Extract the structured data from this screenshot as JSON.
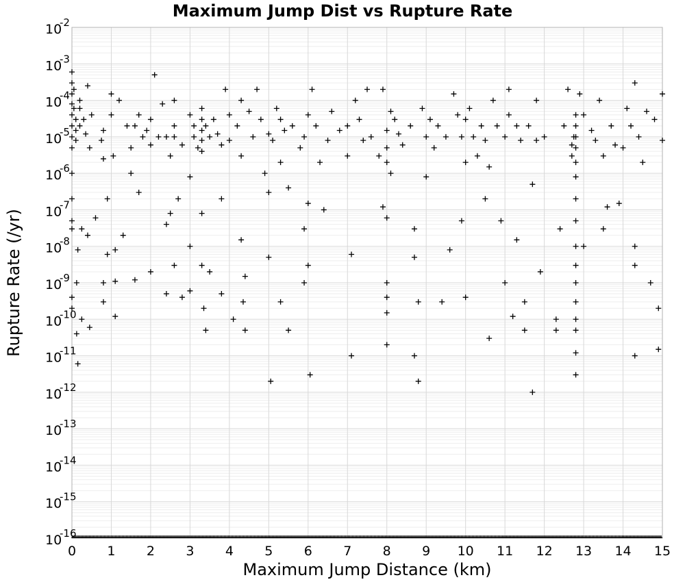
{
  "chart_data": {
    "type": "scatter",
    "title": "Maximum Jump Dist vs Rupture Rate",
    "xlabel": "Maximum Jump Distance (km)",
    "ylabel": "Rupture Rate (/yr)",
    "xlim": [
      0,
      15
    ],
    "ylim": [
      1e-16,
      0.01
    ],
    "y_scale": "log",
    "grid": true,
    "x_ticks": [
      "0",
      "1",
      "2",
      "3",
      "4",
      "5",
      "6",
      "7",
      "8",
      "9",
      "10",
      "11",
      "12",
      "13",
      "14",
      "15"
    ],
    "y_ticks": [
      {
        "base": "10",
        "exp": "-2"
      },
      {
        "base": "10",
        "exp": "-3"
      },
      {
        "base": "10",
        "exp": "-4"
      },
      {
        "base": "10",
        "exp": "-5"
      },
      {
        "base": "10",
        "exp": "-6"
      },
      {
        "base": "10",
        "exp": "-7"
      },
      {
        "base": "10",
        "exp": "-8"
      },
      {
        "base": "10",
        "exp": "-9"
      },
      {
        "base": "10",
        "exp": "-10"
      },
      {
        "base": "10",
        "exp": "-11"
      },
      {
        "base": "10",
        "exp": "-12"
      },
      {
        "base": "10",
        "exp": "-13"
      },
      {
        "base": "10",
        "exp": "-14"
      },
      {
        "base": "10",
        "exp": "-15"
      },
      {
        "base": "10",
        "exp": "-16"
      }
    ],
    "marker": "+",
    "marker_color": "#000000",
    "points": [
      [
        0.0,
        0.0006
      ],
      [
        0.0,
        0.0003
      ],
      [
        0.0,
        0.00015
      ],
      [
        0.0,
        8e-05
      ],
      [
        0.0,
        4e-05
      ],
      [
        0.0,
        2e-05
      ],
      [
        0.0,
        1e-05
      ],
      [
        0.0,
        5e-06
      ],
      [
        0.0,
        1e-06
      ],
      [
        0.0,
        2e-07
      ],
      [
        0.0,
        5e-08
      ],
      [
        0.0,
        3e-08
      ],
      [
        0.0,
        4e-10
      ],
      [
        0.0,
        2e-10
      ],
      [
        0.05,
        0.0002
      ],
      [
        0.05,
        6e-05
      ],
      [
        0.1,
        3e-05
      ],
      [
        0.1,
        1.5e-05
      ],
      [
        0.1,
        8e-06
      ],
      [
        0.12,
        1e-09
      ],
      [
        0.12,
        4e-11
      ],
      [
        0.15,
        6e-12
      ],
      [
        0.15,
        8e-09
      ],
      [
        0.2,
        2e-05
      ],
      [
        0.2,
        6e-05
      ],
      [
        0.2,
        0.0001
      ],
      [
        0.25,
        3e-08
      ],
      [
        0.25,
        1e-10
      ],
      [
        0.3,
        3e-05
      ],
      [
        0.35,
        1.2e-05
      ],
      [
        0.4,
        0.00025
      ],
      [
        0.4,
        2e-08
      ],
      [
        0.45,
        5e-06
      ],
      [
        0.45,
        6e-11
      ],
      [
        0.5,
        4e-05
      ],
      [
        0.6,
        6e-08
      ],
      [
        0.75,
        8e-06
      ],
      [
        0.8,
        1.5e-05
      ],
      [
        0.8,
        2.5e-06
      ],
      [
        0.8,
        1e-09
      ],
      [
        0.8,
        3e-10
      ],
      [
        0.9,
        2e-07
      ],
      [
        0.9,
        6e-09
      ],
      [
        1.0,
        4e-05
      ],
      [
        1.0,
        0.00015
      ],
      [
        1.05,
        3e-06
      ],
      [
        1.1,
        8e-09
      ],
      [
        1.1,
        1.1e-09
      ],
      [
        1.1,
        1.2e-10
      ],
      [
        1.2,
        0.0001
      ],
      [
        1.3,
        2e-08
      ],
      [
        1.4,
        2e-05
      ],
      [
        1.5,
        5e-06
      ],
      [
        1.5,
        1e-06
      ],
      [
        1.6,
        2e-05
      ],
      [
        1.6,
        1.2e-09
      ],
      [
        1.7,
        4e-05
      ],
      [
        1.7,
        3e-07
      ],
      [
        1.8,
        1e-05
      ],
      [
        1.9,
        1.5e-05
      ],
      [
        2.0,
        3e-05
      ],
      [
        2.0,
        6e-06
      ],
      [
        2.0,
        2e-09
      ],
      [
        2.1,
        0.0005
      ],
      [
        2.2,
        1e-05
      ],
      [
        2.3,
        8e-05
      ],
      [
        2.4,
        1e-05
      ],
      [
        2.4,
        4e-08
      ],
      [
        2.4,
        5e-10
      ],
      [
        2.5,
        3e-06
      ],
      [
        2.5,
        8e-08
      ],
      [
        2.6,
        2e-05
      ],
      [
        2.6,
        1e-05
      ],
      [
        2.6,
        0.0001
      ],
      [
        2.6,
        3e-09
      ],
      [
        2.7,
        2e-07
      ],
      [
        2.8,
        6e-06
      ],
      [
        2.8,
        4e-10
      ],
      [
        3.0,
        4e-05
      ],
      [
        3.0,
        8e-07
      ],
      [
        3.0,
        1e-08
      ],
      [
        3.0,
        6e-10
      ],
      [
        3.1,
        2e-05
      ],
      [
        3.1,
        1e-05
      ],
      [
        3.2,
        5e-06
      ],
      [
        3.3,
        6e-05
      ],
      [
        3.3,
        3e-05
      ],
      [
        3.3,
        1.5e-05
      ],
      [
        3.3,
        8e-06
      ],
      [
        3.3,
        4e-06
      ],
      [
        3.3,
        8e-08
      ],
      [
        3.3,
        3e-09
      ],
      [
        3.35,
        2e-10
      ],
      [
        3.4,
        2e-05
      ],
      [
        3.4,
        5e-11
      ],
      [
        3.5,
        1e-05
      ],
      [
        3.5,
        2e-09
      ],
      [
        3.6,
        3e-05
      ],
      [
        3.7,
        1.2e-05
      ],
      [
        3.8,
        6e-06
      ],
      [
        3.8,
        2e-07
      ],
      [
        3.8,
        5e-10
      ],
      [
        3.9,
        0.0002
      ],
      [
        4.0,
        4e-05
      ],
      [
        4.0,
        8e-06
      ],
      [
        4.1,
        1e-10
      ],
      [
        4.2,
        2e-05
      ],
      [
        4.3,
        0.0001
      ],
      [
        4.3,
        3e-06
      ],
      [
        4.3,
        1.5e-08
      ],
      [
        4.35,
        3e-10
      ],
      [
        4.4,
        1.5e-09
      ],
      [
        4.4,
        5e-11
      ],
      [
        4.5,
        5e-05
      ],
      [
        4.6,
        1e-05
      ],
      [
        4.7,
        0.0002
      ],
      [
        4.8,
        3e-05
      ],
      [
        4.9,
        1e-06
      ],
      [
        5.0,
        1.2e-05
      ],
      [
        5.0,
        3e-07
      ],
      [
        5.0,
        5e-09
      ],
      [
        5.05,
        2e-12
      ],
      [
        5.1,
        8e-06
      ],
      [
        5.2,
        6e-05
      ],
      [
        5.3,
        3e-05
      ],
      [
        5.3,
        2e-06
      ],
      [
        5.3,
        3e-10
      ],
      [
        5.4,
        1.5e-05
      ],
      [
        5.5,
        4e-07
      ],
      [
        5.5,
        5e-11
      ],
      [
        5.6,
        2e-05
      ],
      [
        5.8,
        5e-06
      ],
      [
        5.9,
        1e-05
      ],
      [
        5.9,
        3e-08
      ],
      [
        5.9,
        1e-09
      ],
      [
        6.0,
        4e-05
      ],
      [
        6.0,
        1.5e-07
      ],
      [
        6.0,
        3e-09
      ],
      [
        6.05,
        3e-12
      ],
      [
        6.1,
        0.0002
      ],
      [
        6.2,
        2e-05
      ],
      [
        6.3,
        2e-06
      ],
      [
        6.4,
        1e-07
      ],
      [
        6.5,
        8e-06
      ],
      [
        6.6,
        5e-05
      ],
      [
        6.8,
        1.5e-05
      ],
      [
        7.0,
        2e-05
      ],
      [
        7.0,
        3e-06
      ],
      [
        7.1,
        6e-09
      ],
      [
        7.1,
        1e-11
      ],
      [
        7.2,
        0.0001
      ],
      [
        7.3,
        3e-05
      ],
      [
        7.4,
        8e-06
      ],
      [
        7.5,
        0.0002
      ],
      [
        7.6,
        1e-05
      ],
      [
        7.8,
        3e-06
      ],
      [
        7.9,
        0.0002
      ],
      [
        7.9,
        1.2e-07
      ],
      [
        8.0,
        1.5e-05
      ],
      [
        8.0,
        5e-06
      ],
      [
        8.0,
        2e-06
      ],
      [
        8.0,
        6e-08
      ],
      [
        8.0,
        1e-09
      ],
      [
        8.0,
        4e-10
      ],
      [
        8.0,
        1.5e-10
      ],
      [
        8.0,
        2e-11
      ],
      [
        8.1,
        5e-05
      ],
      [
        8.1,
        1e-06
      ],
      [
        8.2,
        3e-05
      ],
      [
        8.3,
        1.2e-05
      ],
      [
        8.4,
        6e-06
      ],
      [
        8.6,
        2e-05
      ],
      [
        8.7,
        3e-08
      ],
      [
        8.7,
        5e-09
      ],
      [
        8.7,
        1e-11
      ],
      [
        8.8,
        3e-10
      ],
      [
        8.8,
        2e-12
      ],
      [
        8.9,
        6e-05
      ],
      [
        9.0,
        1e-05
      ],
      [
        9.0,
        8e-07
      ],
      [
        9.1,
        3e-05
      ],
      [
        9.2,
        5e-06
      ],
      [
        9.3,
        2e-05
      ],
      [
        9.4,
        3e-10
      ],
      [
        9.5,
        1e-05
      ],
      [
        9.6,
        8e-09
      ],
      [
        9.7,
        0.00015
      ],
      [
        9.8,
        4e-05
      ],
      [
        9.9,
        1e-05
      ],
      [
        9.9,
        5e-08
      ],
      [
        10.0,
        3e-05
      ],
      [
        10.0,
        2e-06
      ],
      [
        10.0,
        4e-10
      ],
      [
        10.1,
        6e-05
      ],
      [
        10.2,
        1e-05
      ],
      [
        10.3,
        3e-06
      ],
      [
        10.4,
        2e-05
      ],
      [
        10.5,
        8e-06
      ],
      [
        10.5,
        2e-07
      ],
      [
        10.6,
        1.5e-06
      ],
      [
        10.6,
        3e-11
      ],
      [
        10.7,
        0.0001
      ],
      [
        10.8,
        2e-05
      ],
      [
        10.9,
        5e-08
      ],
      [
        11.0,
        1e-05
      ],
      [
        11.0,
        1e-09
      ],
      [
        11.1,
        0.0002
      ],
      [
        11.1,
        4e-05
      ],
      [
        11.2,
        1.2e-10
      ],
      [
        11.3,
        2e-05
      ],
      [
        11.3,
        1.5e-08
      ],
      [
        11.4,
        8e-06
      ],
      [
        11.5,
        3e-10
      ],
      [
        11.5,
        5e-11
      ],
      [
        11.6,
        2e-05
      ],
      [
        11.7,
        5e-07
      ],
      [
        11.7,
        1e-12
      ],
      [
        11.8,
        0.0001
      ],
      [
        11.8,
        8e-06
      ],
      [
        11.9,
        2e-09
      ],
      [
        12.0,
        1e-05
      ],
      [
        12.3,
        1e-10
      ],
      [
        12.3,
        5e-11
      ],
      [
        12.4,
        3e-08
      ],
      [
        12.5,
        2e-05
      ],
      [
        12.6,
        0.0002
      ],
      [
        12.7,
        6e-06
      ],
      [
        12.7,
        3e-06
      ],
      [
        12.75,
        1e-05
      ],
      [
        12.8,
        4e-05
      ],
      [
        12.8,
        2e-05
      ],
      [
        12.8,
        1e-05
      ],
      [
        12.8,
        5e-06
      ],
      [
        12.8,
        2e-06
      ],
      [
        12.8,
        8e-07
      ],
      [
        12.8,
        2e-07
      ],
      [
        12.8,
        5e-08
      ],
      [
        12.8,
        1e-08
      ],
      [
        12.8,
        3e-09
      ],
      [
        12.8,
        1e-09
      ],
      [
        12.8,
        3e-10
      ],
      [
        12.8,
        1e-10
      ],
      [
        12.8,
        5e-11
      ],
      [
        12.8,
        1.2e-11
      ],
      [
        12.8,
        3e-12
      ],
      [
        12.9,
        0.00015
      ],
      [
        13.0,
        4e-05
      ],
      [
        13.0,
        1e-08
      ],
      [
        13.2,
        1.5e-05
      ],
      [
        13.3,
        8e-06
      ],
      [
        13.4,
        0.0001
      ],
      [
        13.5,
        3e-06
      ],
      [
        13.5,
        3e-08
      ],
      [
        13.6,
        1.2e-07
      ],
      [
        13.7,
        2e-05
      ],
      [
        13.8,
        6e-06
      ],
      [
        13.9,
        1.5e-07
      ],
      [
        14.0,
        5e-06
      ],
      [
        14.1,
        6e-05
      ],
      [
        14.2,
        2e-05
      ],
      [
        14.3,
        0.0003
      ],
      [
        14.3,
        1e-08
      ],
      [
        14.3,
        3e-09
      ],
      [
        14.3,
        1e-11
      ],
      [
        14.4,
        1e-05
      ],
      [
        14.5,
        2e-06
      ],
      [
        14.6,
        5e-05
      ],
      [
        14.7,
        1e-09
      ],
      [
        14.8,
        3e-05
      ],
      [
        14.9,
        2e-10
      ],
      [
        14.9,
        1.5e-11
      ],
      [
        15.0,
        0.00015
      ],
      [
        15.0,
        8e-06
      ]
    ],
    "zero_rate_strip": "dense"
  }
}
